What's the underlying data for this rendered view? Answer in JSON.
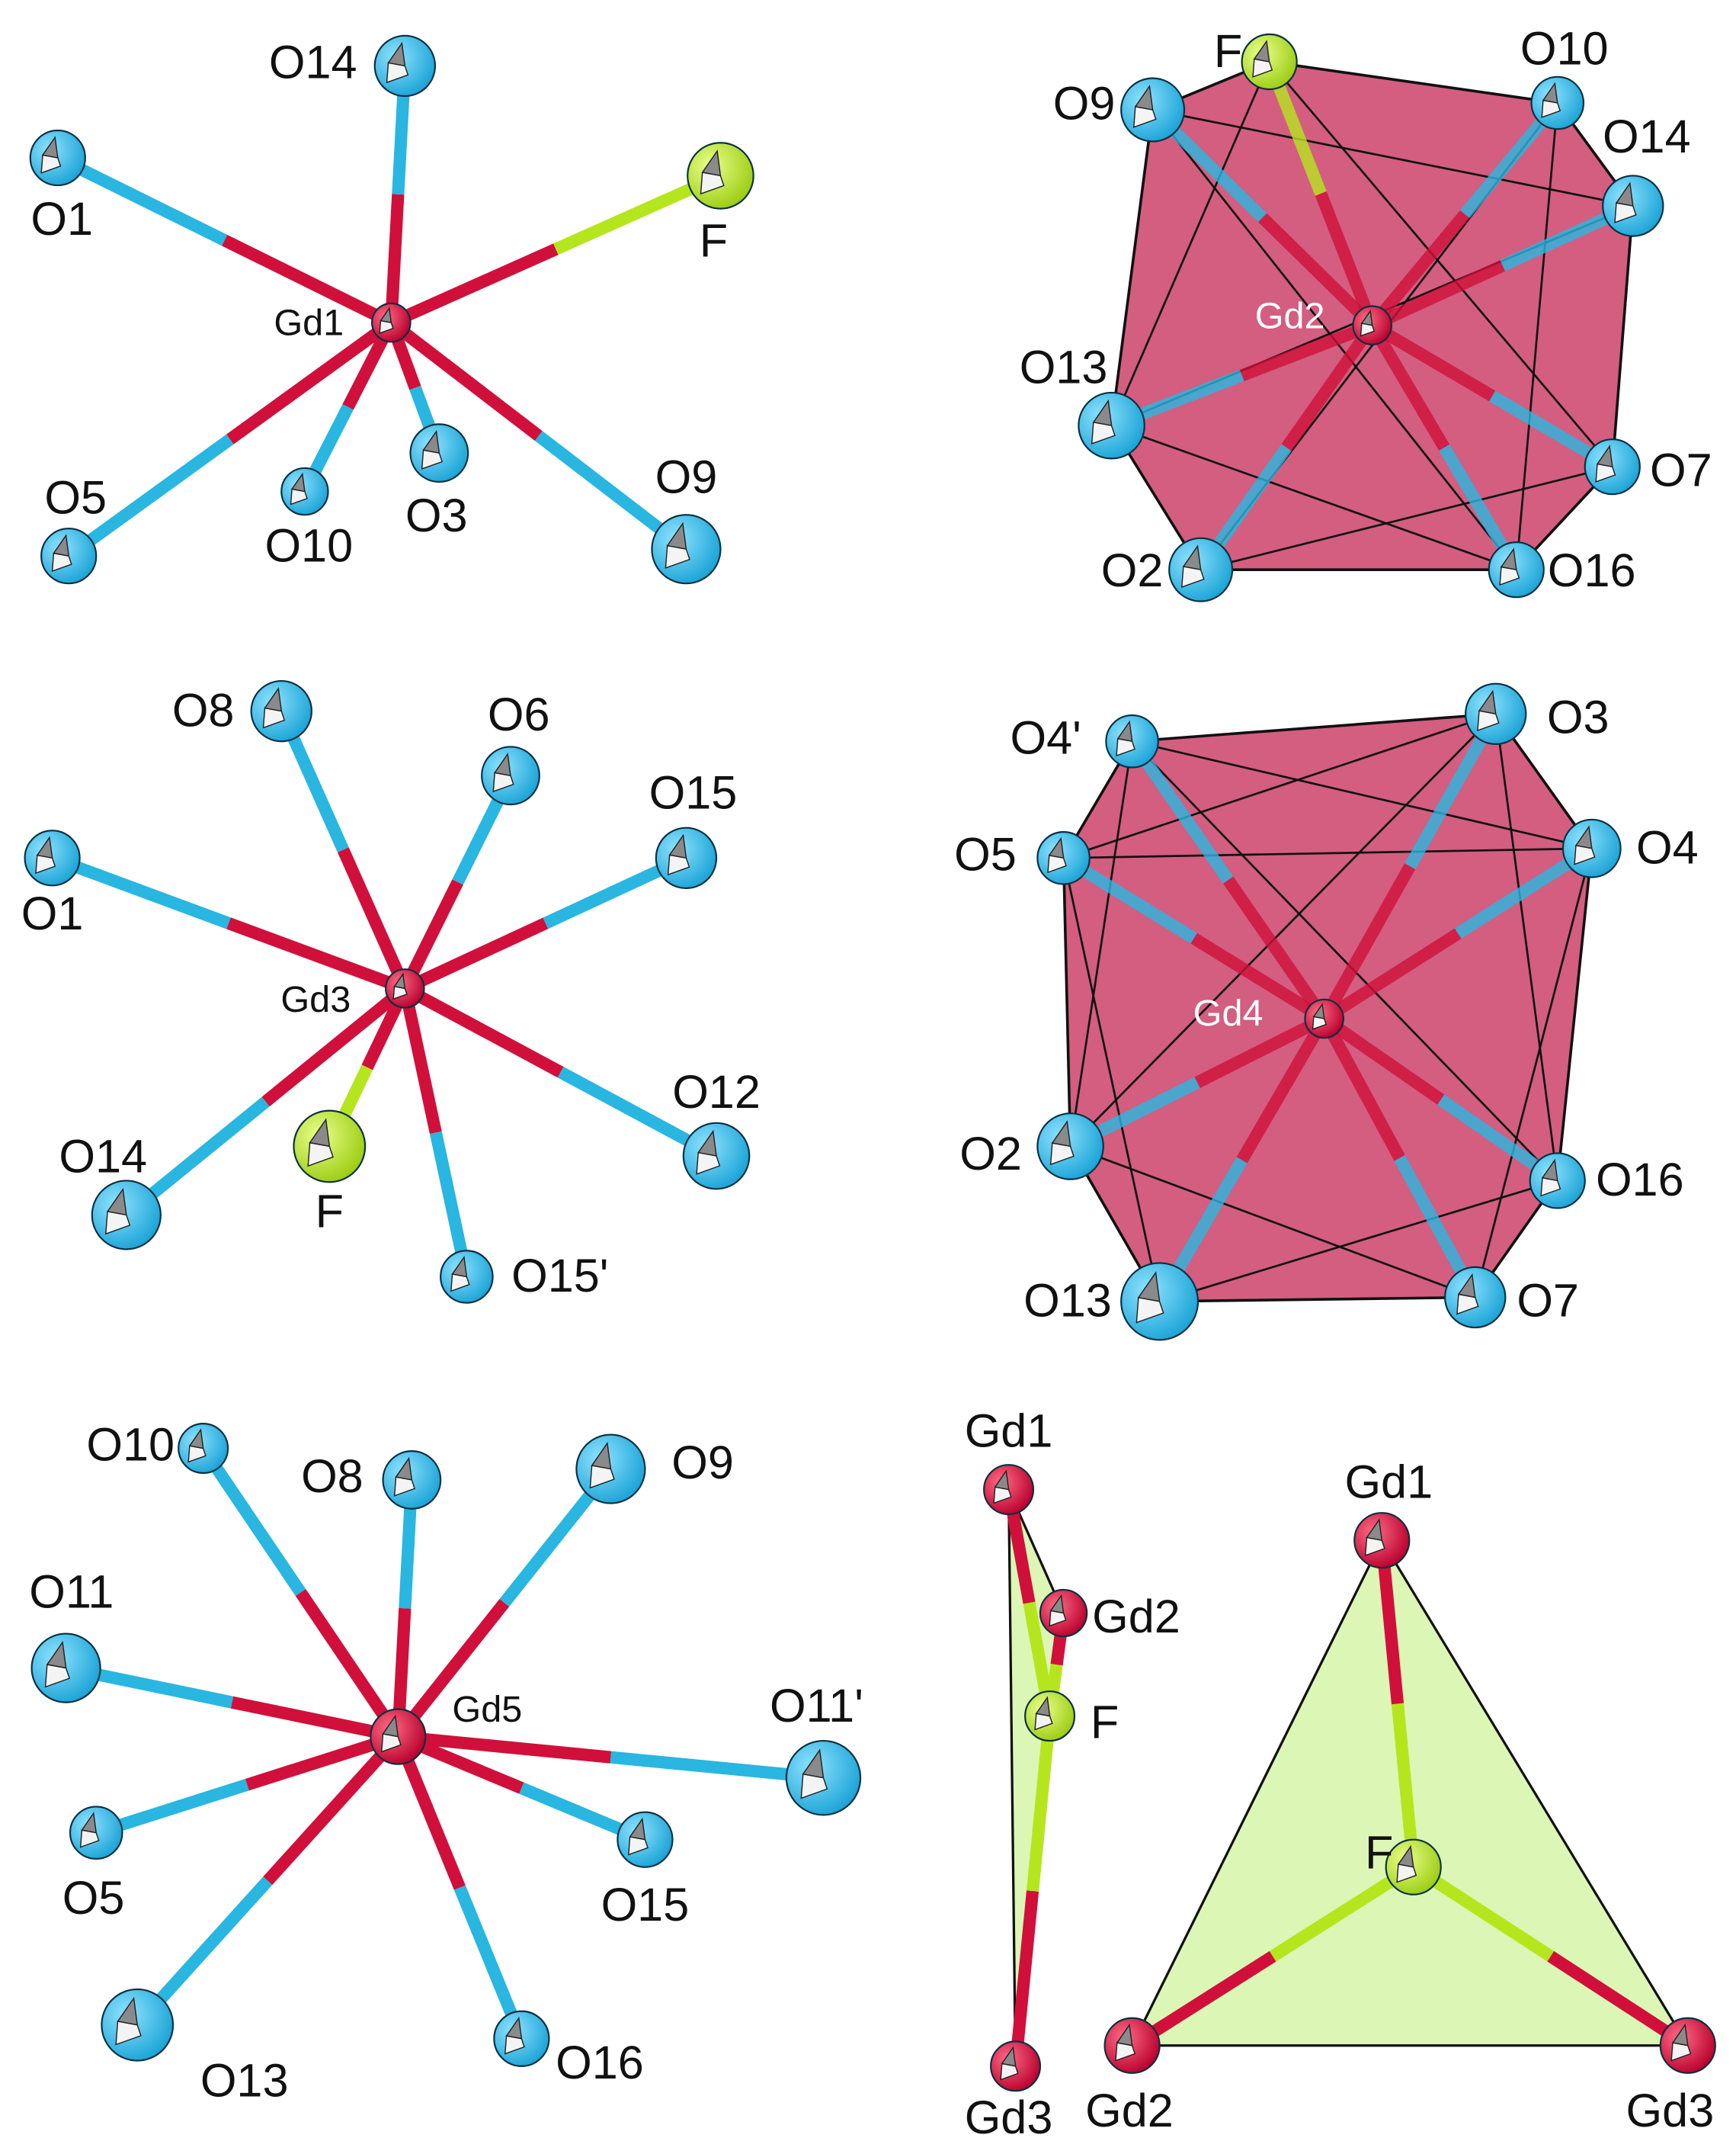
{
  "panels": [
    {
      "center": "Gd1",
      "atoms": [
        "O14",
        "O1",
        "F",
        "O5",
        "O10",
        "O3",
        "O9"
      ]
    },
    {
      "center": "Gd2",
      "atoms": [
        "F",
        "O9",
        "O10",
        "O14",
        "O13",
        "O7",
        "O2",
        "O16"
      ]
    },
    {
      "center": "Gd3",
      "atoms": [
        "O8",
        "O6",
        "O15",
        "O1",
        "O12",
        "O14",
        "F",
        "O15'"
      ]
    },
    {
      "center": "Gd4",
      "atoms": [
        "O4'",
        "O3",
        "O5",
        "O4",
        "O2",
        "O16",
        "O13",
        "O7"
      ]
    },
    {
      "center": "Gd5",
      "atoms": [
        "O10",
        "O8",
        "O9",
        "O11",
        "O11'",
        "O5",
        "O15",
        "O13",
        "O16"
      ]
    },
    {
      "center": "F",
      "atoms": [
        "Gd1",
        "Gd2",
        "Gd3"
      ]
    },
    {
      "center": "F",
      "atoms": [
        "Gd1",
        "Gd2",
        "Gd3"
      ]
    }
  ]
}
